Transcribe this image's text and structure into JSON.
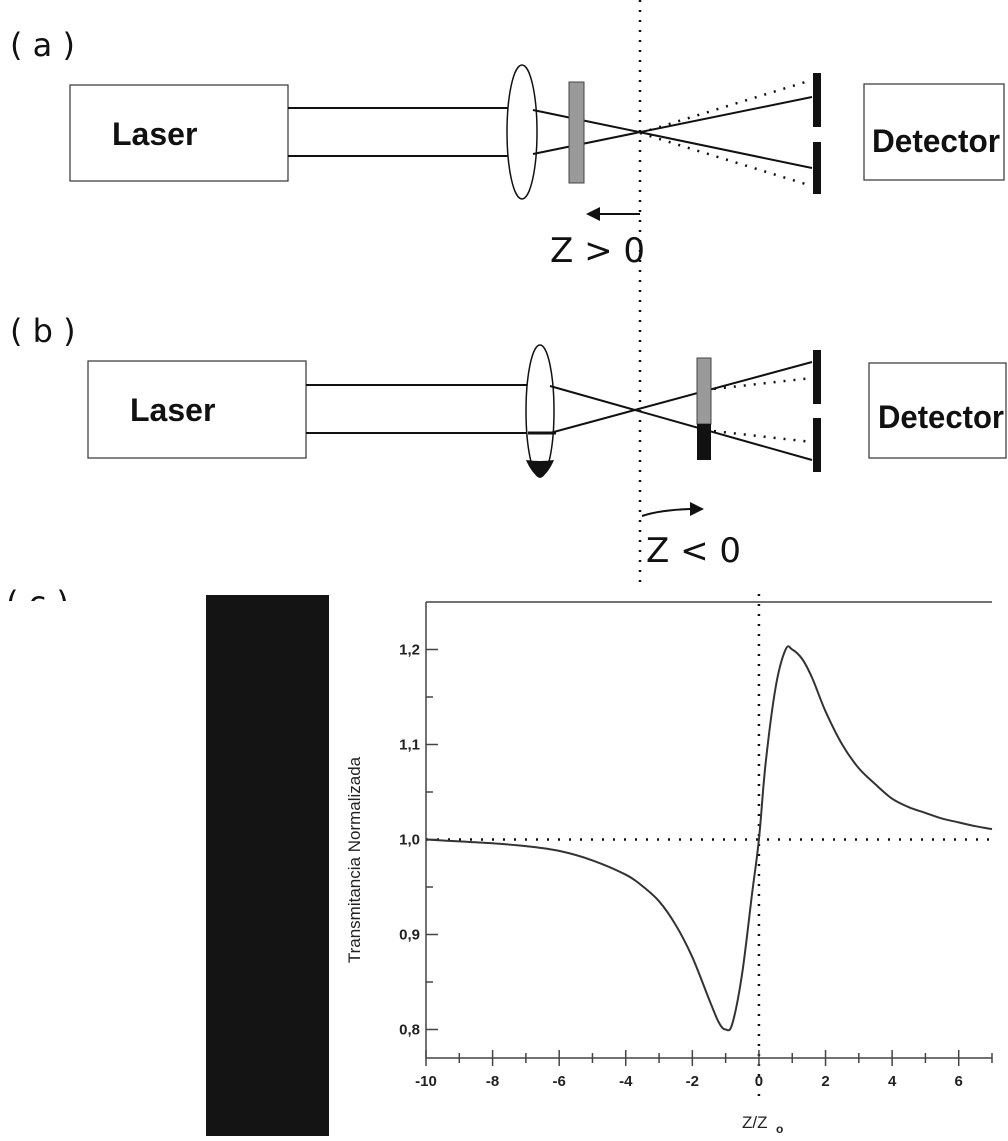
{
  "panels": {
    "a": {
      "label": "( a )",
      "laser": "Laser",
      "detector": "Detector",
      "z_label": "Z > 0"
    },
    "b": {
      "label": "( b )",
      "laser": "Laser",
      "detector": "Detector",
      "z_label": "Z < 0"
    },
    "c": {
      "label": "( c )"
    }
  },
  "colors": {
    "line": "#111111",
    "sample_gray": "#9a9a9a",
    "curve": "#333333",
    "black_bar": "#141414"
  },
  "chart_data": {
    "type": "line",
    "xlabel": "Z/Z",
    "xlabel_sub": "o",
    "ylabel": "Transmitancia Normalizada",
    "xlim": [
      -10,
      7
    ],
    "ylim": [
      0.77,
      1.25
    ],
    "x_ticks": [
      -10,
      -8,
      -6,
      -4,
      -2,
      0,
      2,
      4,
      6
    ],
    "x_tick_labels": [
      "-10",
      "-8",
      "-6",
      "-4",
      "-2",
      "0",
      "2",
      "4",
      "6"
    ],
    "y_ticks": [
      0.8,
      0.9,
      1.0,
      1.1,
      1.2
    ],
    "y_tick_labels": [
      "0,8",
      "0,9",
      "1,0",
      "1,1",
      "1,2"
    ],
    "reference_lines": {
      "y": 1.0,
      "x": 0
    },
    "series": [
      {
        "points": [
          [
            -10,
            1.0
          ],
          [
            -9,
            0.998
          ],
          [
            -8,
            0.996
          ],
          [
            -7,
            0.993
          ],
          [
            -6,
            0.988
          ],
          [
            -5,
            0.978
          ],
          [
            -4,
            0.963
          ],
          [
            -3.5,
            0.951
          ],
          [
            -3,
            0.935
          ],
          [
            -2.5,
            0.91
          ],
          [
            -2,
            0.876
          ],
          [
            -1.5,
            0.832
          ],
          [
            -1.2,
            0.807
          ],
          [
            -1.0,
            0.8
          ],
          [
            -0.8,
            0.806
          ],
          [
            -0.5,
            0.86
          ],
          [
            -0.2,
            0.945
          ],
          [
            0,
            1.0
          ],
          [
            0.2,
            1.08
          ],
          [
            0.5,
            1.16
          ],
          [
            0.8,
            1.2
          ],
          [
            1.0,
            1.2
          ],
          [
            1.3,
            1.19
          ],
          [
            1.6,
            1.17
          ],
          [
            2,
            1.135
          ],
          [
            2.5,
            1.1
          ],
          [
            3,
            1.075
          ],
          [
            3.5,
            1.058
          ],
          [
            4,
            1.043
          ],
          [
            4.5,
            1.034
          ],
          [
            5,
            1.028
          ],
          [
            5.5,
            1.022
          ],
          [
            6,
            1.018
          ],
          [
            6.5,
            1.014
          ],
          [
            7,
            1.011
          ]
        ]
      }
    ]
  }
}
